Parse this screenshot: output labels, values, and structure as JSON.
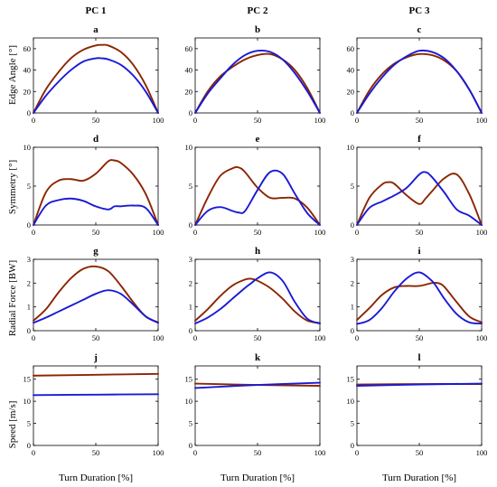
{
  "column_titles": [
    "PC 1",
    "PC 2",
    "PC 3"
  ],
  "row_ylabels": [
    "Edge Angle [°]",
    "Symmetry [°]",
    "Radial Force [BW]",
    "Speed [m/s]"
  ],
  "xlabel": "Turn Duration [%]",
  "colors": {
    "series_red": "#8B2500",
    "series_blue": "#1A1AD6"
  },
  "chart_data": [
    {
      "panel": "a",
      "type": "line",
      "x": [
        0,
        10,
        20,
        30,
        40,
        50,
        55,
        60,
        70,
        80,
        90,
        100
      ],
      "series": [
        {
          "color": "red",
          "values": [
            0,
            22,
            38,
            51,
            59,
            63,
            63.5,
            63,
            57,
            45,
            26,
            0
          ]
        },
        {
          "color": "blue",
          "values": [
            0,
            16,
            29,
            40,
            48,
            51,
            51,
            50,
            45,
            35,
            20,
            0
          ]
        }
      ],
      "xlim": [
        0,
        100
      ],
      "ylim": [
        0,
        70
      ],
      "xticks": [
        0,
        50,
        100
      ],
      "yticks": [
        0,
        20,
        40,
        60
      ]
    },
    {
      "panel": "b",
      "type": "line",
      "x": [
        0,
        10,
        20,
        30,
        40,
        50,
        60,
        70,
        80,
        90,
        100
      ],
      "series": [
        {
          "color": "red",
          "values": [
            0,
            20,
            34,
            43,
            50,
            54,
            55,
            50,
            40,
            23,
            0
          ]
        },
        {
          "color": "blue",
          "values": [
            0,
            18,
            32,
            45,
            54,
            58,
            57,
            50,
            37,
            20,
            0
          ]
        }
      ],
      "xlim": [
        0,
        100
      ],
      "ylim": [
        0,
        70
      ],
      "xticks": [
        0,
        50,
        100
      ],
      "yticks": [
        0,
        20,
        40,
        60
      ]
    },
    {
      "panel": "c",
      "type": "line",
      "x": [
        0,
        10,
        20,
        30,
        40,
        50,
        60,
        70,
        80,
        90,
        100
      ],
      "series": [
        {
          "color": "red",
          "values": [
            0,
            21,
            36,
            46,
            52,
            55,
            54,
            49,
            39,
            22,
            0
          ]
        },
        {
          "color": "blue",
          "values": [
            0,
            18,
            33,
            45,
            53,
            58,
            57,
            51,
            39,
            22,
            0
          ]
        }
      ],
      "xlim": [
        0,
        100
      ],
      "ylim": [
        0,
        70
      ],
      "xticks": [
        0,
        50,
        100
      ],
      "yticks": [
        0,
        20,
        40,
        60
      ]
    },
    {
      "panel": "d",
      "type": "line",
      "x": [
        0,
        10,
        20,
        30,
        40,
        50,
        60,
        65,
        70,
        80,
        90,
        100
      ],
      "series": [
        {
          "color": "red",
          "values": [
            0,
            4.2,
            5.7,
            5.9,
            5.7,
            6.6,
            8.2,
            8.3,
            8,
            6.5,
            4,
            0
          ]
        },
        {
          "color": "blue",
          "values": [
            0,
            2.5,
            3.2,
            3.4,
            3.1,
            2.4,
            2.0,
            2.4,
            2.4,
            2.5,
            2.2,
            0
          ]
        }
      ],
      "xlim": [
        0,
        100
      ],
      "ylim": [
        0,
        10
      ],
      "xticks": [
        0,
        50,
        100
      ],
      "yticks": [
        0,
        5,
        10
      ]
    },
    {
      "panel": "e",
      "type": "line",
      "x": [
        0,
        10,
        20,
        30,
        35,
        40,
        50,
        60,
        70,
        80,
        90,
        100
      ],
      "series": [
        {
          "color": "red",
          "values": [
            0,
            3.5,
            6.3,
            7.3,
            7.4,
            6.8,
            4.8,
            3.5,
            3.5,
            3.4,
            2.2,
            0
          ]
        },
        {
          "color": "blue",
          "values": [
            0,
            1.8,
            2.3,
            1.8,
            1.6,
            1.8,
            4.5,
            6.8,
            6.6,
            4,
            1.5,
            0
          ]
        }
      ],
      "xlim": [
        0,
        100
      ],
      "ylim": [
        0,
        10
      ],
      "xticks": [
        0,
        50,
        100
      ],
      "yticks": [
        0,
        5,
        10
      ]
    },
    {
      "panel": "f",
      "type": "line",
      "x": [
        0,
        10,
        20,
        25,
        30,
        40,
        50,
        55,
        60,
        70,
        80,
        90,
        100
      ],
      "series": [
        {
          "color": "red",
          "values": [
            0,
            3.5,
            5.2,
            5.5,
            5.3,
            3.8,
            2.7,
            3.4,
            4.3,
            6.0,
            6.5,
            4,
            0
          ]
        },
        {
          "color": "blue",
          "values": [
            0,
            2.2,
            3.0,
            3.4,
            3.8,
            4.8,
            6.5,
            6.8,
            6.2,
            4.2,
            2.0,
            1.2,
            0
          ]
        }
      ],
      "xlim": [
        0,
        100
      ],
      "ylim": [
        0,
        10
      ],
      "xticks": [
        0,
        50,
        100
      ],
      "yticks": [
        0,
        5,
        10
      ]
    },
    {
      "panel": "g",
      "type": "line",
      "x": [
        0,
        10,
        20,
        30,
        40,
        50,
        60,
        70,
        80,
        90,
        100
      ],
      "series": [
        {
          "color": "red",
          "values": [
            0.42,
            0.9,
            1.6,
            2.2,
            2.6,
            2.7,
            2.5,
            1.9,
            1.2,
            0.6,
            0.35
          ]
        },
        {
          "color": "blue",
          "values": [
            0.33,
            0.55,
            0.8,
            1.05,
            1.3,
            1.55,
            1.7,
            1.55,
            1.1,
            0.6,
            0.33
          ]
        }
      ],
      "xlim": [
        0,
        100
      ],
      "ylim": [
        0,
        3
      ],
      "xticks": [
        0,
        50,
        100
      ],
      "yticks": [
        0,
        1,
        2,
        3
      ]
    },
    {
      "panel": "h",
      "type": "line",
      "x": [
        0,
        10,
        20,
        30,
        40,
        45,
        50,
        60,
        70,
        80,
        90,
        100
      ],
      "series": [
        {
          "color": "red",
          "values": [
            0.42,
            0.9,
            1.45,
            1.9,
            2.15,
            2.18,
            2.1,
            1.8,
            1.35,
            0.8,
            0.42,
            0.32
          ]
        },
        {
          "color": "blue",
          "values": [
            0.3,
            0.55,
            0.9,
            1.35,
            1.8,
            2.0,
            2.2,
            2.45,
            2.1,
            1.2,
            0.5,
            0.3
          ]
        }
      ],
      "xlim": [
        0,
        100
      ],
      "ylim": [
        0,
        3
      ],
      "xticks": [
        0,
        50,
        100
      ],
      "yticks": [
        0,
        1,
        2,
        3
      ]
    },
    {
      "panel": "i",
      "type": "line",
      "x": [
        0,
        10,
        20,
        30,
        40,
        50,
        60,
        65,
        70,
        80,
        90,
        100
      ],
      "series": [
        {
          "color": "red",
          "values": [
            0.45,
            0.95,
            1.5,
            1.82,
            1.88,
            1.88,
            2.0,
            2.0,
            1.85,
            1.2,
            0.6,
            0.35
          ]
        },
        {
          "color": "blue",
          "values": [
            0.28,
            0.45,
            0.95,
            1.65,
            2.2,
            2.45,
            2.1,
            1.75,
            1.35,
            0.7,
            0.35,
            0.3
          ]
        }
      ],
      "xlim": [
        0,
        100
      ],
      "ylim": [
        0,
        3
      ],
      "xticks": [
        0,
        50,
        100
      ],
      "yticks": [
        0,
        1,
        2,
        3
      ]
    },
    {
      "panel": "j",
      "type": "line",
      "x": [
        0,
        50,
        100
      ],
      "series": [
        {
          "color": "red",
          "values": [
            15.8,
            16.0,
            16.2
          ]
        },
        {
          "color": "blue",
          "values": [
            11.4,
            11.5,
            11.6
          ]
        }
      ],
      "xlim": [
        0,
        100
      ],
      "ylim": [
        0,
        18
      ],
      "xticks": [
        0,
        50,
        100
      ],
      "yticks": [
        0,
        5,
        10,
        15
      ]
    },
    {
      "panel": "k",
      "type": "line",
      "x": [
        0,
        50,
        100
      ],
      "series": [
        {
          "color": "red",
          "values": [
            14.0,
            13.7,
            13.5
          ]
        },
        {
          "color": "blue",
          "values": [
            13.0,
            13.7,
            14.2
          ]
        }
      ],
      "xlim": [
        0,
        100
      ],
      "ylim": [
        0,
        18
      ],
      "xticks": [
        0,
        50,
        100
      ],
      "yticks": [
        0,
        5,
        10,
        15
      ]
    },
    {
      "panel": "l",
      "type": "line",
      "x": [
        0,
        50,
        100
      ],
      "series": [
        {
          "color": "red",
          "values": [
            13.8,
            13.9,
            13.9
          ]
        },
        {
          "color": "blue",
          "values": [
            13.5,
            13.8,
            14.0
          ]
        }
      ],
      "xlim": [
        0,
        100
      ],
      "ylim": [
        0,
        18
      ],
      "xticks": [
        0,
        50,
        100
      ],
      "yticks": [
        0,
        5,
        10,
        15
      ]
    }
  ]
}
